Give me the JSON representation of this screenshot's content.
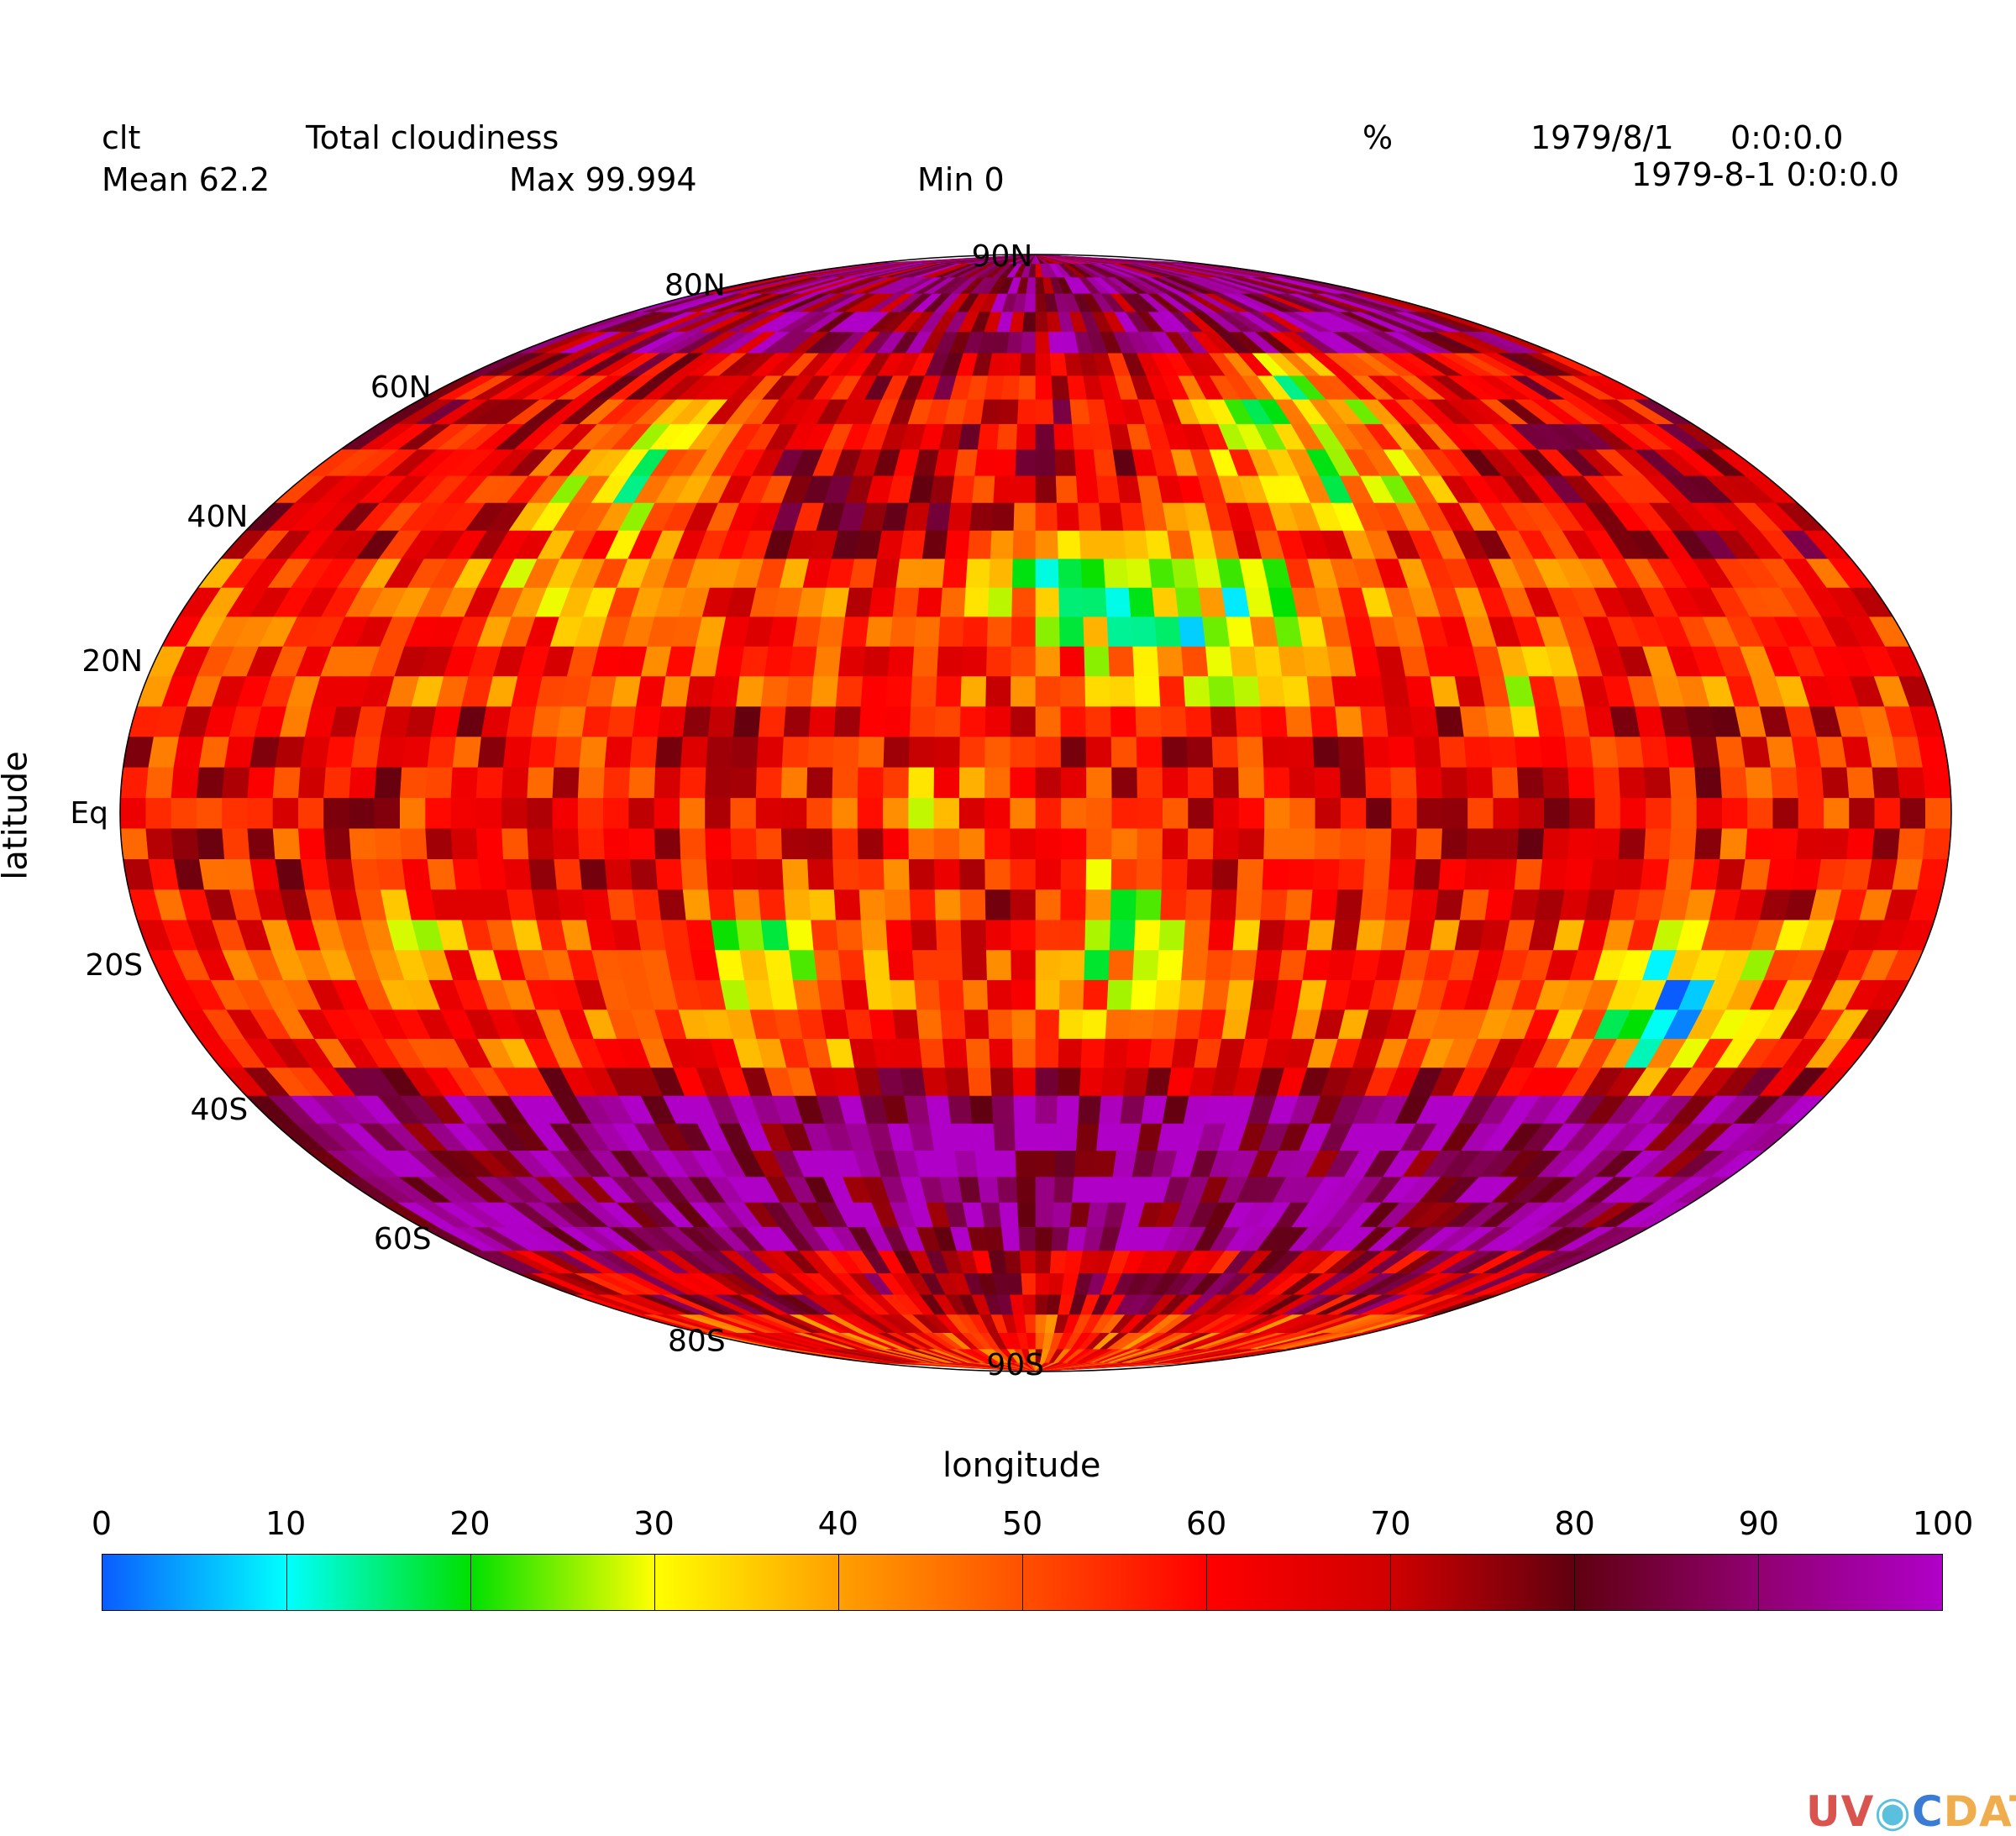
{
  "header": {
    "var_name": "clt",
    "long_name": "Total cloudiness",
    "units": "%",
    "date": "1979/8/1",
    "time": "0:0:0.0",
    "mean": "Mean 62.2",
    "max": "Max 99.994",
    "min": "Min 0",
    "timestamp": "1979-8-1 0:0:0.0"
  },
  "axes": {
    "ylabel": "latitude",
    "xlabel": "longitude",
    "lat_ticks": [
      "80N",
      "60N",
      "40N",
      "20N",
      "Eq",
      "20S",
      "40S",
      "60S",
      "80S",
      "90S"
    ],
    "top_label": "90N"
  },
  "colorbar": {
    "ticks": [
      "0",
      "10",
      "20",
      "30",
      "40",
      "50",
      "60",
      "70",
      "80",
      "90",
      "100"
    ],
    "colors": [
      "#0a5cff",
      "#00ffff",
      "#00e000",
      "#ffff00",
      "#ffa000",
      "#ff5000",
      "#ff0000",
      "#d00000",
      "#600010",
      "#900070",
      "#b000c8"
    ]
  },
  "chart_data": {
    "type": "heatmap",
    "projection": "Mollweide",
    "variable": "clt",
    "units": "%",
    "lat_range": [
      -90,
      90
    ],
    "lon_range": [
      -180,
      180
    ],
    "value_range": [
      0,
      100
    ],
    "mean": 62.2,
    "max": 99.994,
    "min": 0
  },
  "logo": {
    "p1": "UV",
    "p2": "C",
    "p3": "DAT"
  }
}
